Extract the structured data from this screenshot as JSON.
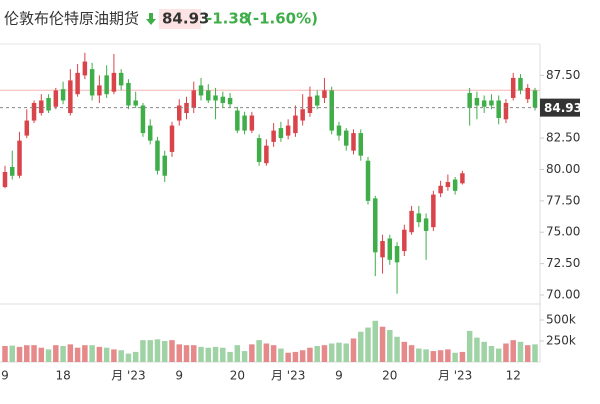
{
  "chart_data": {
    "type": "candlestick",
    "title": "伦敦布伦特原油期货",
    "last_price": 84.93,
    "change": -1.38,
    "change_pct": "(-1.60%)",
    "reference_line": 86.31,
    "up_color": "#d9444a",
    "down_color": "#3fae49",
    "volume_up_color": "#e5898b",
    "volume_down_color": "#9fd3a6",
    "categories": [
      "9",
      null,
      null,
      null,
      null,
      null,
      null,
      null,
      "18",
      null,
      null,
      null,
      null,
      null,
      null,
      null,
      null,
      "月 '23",
      null,
      null,
      null,
      null,
      null,
      null,
      "9",
      null,
      null,
      null,
      null,
      null,
      null,
      null,
      "20",
      null,
      null,
      null,
      null,
      null,
      null,
      "月 '23",
      null,
      null,
      null,
      null,
      null,
      null,
      "9",
      null,
      null,
      null,
      null,
      null,
      null,
      "20",
      null,
      null,
      null,
      null,
      null,
      null,
      null,
      null,
      "月 '23",
      null,
      null,
      null,
      null,
      null,
      null,
      null,
      "12",
      null,
      null,
      null
    ],
    "open": [
      78.6,
      80.2,
      79.5,
      82.7,
      83.9,
      84.5,
      85.7,
      85,
      86.4,
      84.5,
      86,
      87.5,
      88,
      85.9,
      87.5,
      86.2,
      87.7,
      86.9,
      85.5,
      85.1,
      83.5,
      82.3,
      81.1,
      81.4,
      83.9,
      84.5,
      84.9,
      86.7,
      86.3,
      85.9,
      85.8,
      85.7,
      84.7,
      84.3,
      83.1,
      82.5,
      80.5,
      82.2,
      83.3,
      82.7,
      82.9,
      83.9,
      84.5,
      85.9,
      85.7,
      86.3,
      83.5,
      83.1,
      81.5,
      82.9,
      80.7,
      77.7,
      73,
      74.5,
      73.9,
      73.5,
      75,
      76.5,
      76.1,
      75.4,
      78.1,
      78.6,
      79.2,
      78.9,
      86.1,
      85.7,
      85.5,
      85.5,
      85.5,
      84,
      85.7,
      87.3,
      85.6,
      86.3
    ],
    "high": [
      80.3,
      81.5,
      83,
      84.8,
      85.5,
      86,
      86,
      86.5,
      87,
      88,
      88.4,
      89.3,
      88.5,
      87.5,
      88.3,
      89.2,
      88,
      87.2,
      86.2,
      85.3,
      84,
      82.6,
      81.5,
      83.8,
      85.6,
      85.8,
      87,
      87.3,
      86.8,
      86.5,
      86.2,
      86.1,
      85,
      84.6,
      84.6,
      82.8,
      82.4,
      83.7,
      83.8,
      84,
      85.1,
      86,
      86.6,
      86.3,
      87.3,
      86.6,
      83.8,
      83.3,
      83.2,
      83.2,
      81,
      77.9,
      74.8,
      74.8,
      74.2,
      75.6,
      77.1,
      77.1,
      76.5,
      78.3,
      79.1,
      79.6,
      79.4,
      79.9,
      86.5,
      86.2,
      85.9,
      86,
      85.9,
      85.6,
      87.7,
      87.6,
      86.8,
      86.5
    ],
    "low": [
      78.5,
      79.2,
      79.3,
      82.5,
      83.7,
      84.3,
      84.5,
      84.8,
      85.2,
      84.3,
      85.8,
      87.2,
      85.5,
      85.3,
      85.7,
      86,
      86.3,
      84.8,
      84.9,
      82.6,
      82,
      79.6,
      79,
      81,
      83.5,
      84,
      84.5,
      85.5,
      85.3,
      84,
      84.9,
      84.9,
      82.9,
      82.8,
      82.9,
      80.3,
      80.3,
      81.8,
      82.2,
      82.4,
      82.6,
      83.5,
      84.2,
      84.8,
      85.3,
      82.8,
      82.3,
      81.5,
      81.2,
      80.7,
      77.2,
      71.5,
      71.7,
      72.4,
      70.1,
      73.1,
      74.8,
      75.4,
      72.8,
      75.1,
      77.8,
      78.3,
      78,
      78.8,
      83.5,
      84,
      84.5,
      84.8,
      83.6,
      83.7,
      85.5,
      86,
      85.3,
      84.7
    ],
    "close": [
      79.8,
      79.5,
      82.3,
      83.9,
      85.3,
      85.5,
      84.7,
      86.3,
      85.5,
      87.1,
      87.7,
      88.6,
      85.9,
      86.7,
      86,
      87.7,
      86.7,
      85.1,
      85.1,
      82.9,
      82.3,
      79.9,
      79.5,
      83.5,
      85.1,
      85.3,
      86.3,
      85.9,
      85.5,
      85.5,
      85.3,
      85.2,
      83.1,
      83.1,
      84.3,
      80.6,
      81.9,
      83.1,
      82.5,
      83.5,
      84.3,
      84.8,
      85.8,
      85.1,
      86.3,
      83.1,
      82.7,
      81.9,
      82.9,
      81.1,
      77.5,
      73.4,
      74.3,
      72.8,
      72.6,
      75.2,
      76.7,
      75.8,
      75.1,
      78,
      78.7,
      79,
      78.3,
      79.7,
      84.9,
      85.1,
      85,
      85.1,
      84.1,
      85.3,
      87.3,
      86.3,
      86.5,
      84.93
    ],
    "volume": [
      190000,
      195000,
      180000,
      200000,
      200000,
      170000,
      150000,
      200000,
      190000,
      210000,
      170000,
      200000,
      200000,
      180000,
      170000,
      150000,
      140000,
      100000,
      120000,
      260000,
      260000,
      270000,
      250000,
      260000,
      210000,
      200000,
      200000,
      180000,
      170000,
      180000,
      170000,
      120000,
      200000,
      130000,
      210000,
      260000,
      220000,
      200000,
      160000,
      110000,
      120000,
      140000,
      170000,
      190000,
      200000,
      220000,
      230000,
      220000,
      280000,
      360000,
      410000,
      490000,
      420000,
      380000,
      300000,
      240000,
      200000,
      160000,
      150000,
      130000,
      140000,
      150000,
      110000,
      120000,
      370000,
      290000,
      240000,
      190000,
      160000,
      220000,
      260000,
      240000,
      200000,
      210000
    ],
    "ylim": [
      69.28,
      90.0
    ],
    "yticks": [
      {
        "value": 70,
        "label": "70.00"
      },
      {
        "value": 72.5,
        "label": "72.50"
      },
      {
        "value": 75,
        "label": "75.00"
      },
      {
        "value": 77.5,
        "label": "77.50"
      },
      {
        "value": 80,
        "label": "80.00"
      },
      {
        "value": 82.5,
        "label": "82.50"
      },
      {
        "value": 85,
        "label": "85.00"
      },
      {
        "value": 87.5,
        "label": "87.50"
      }
    ],
    "volume_ylim": [
      0,
      690000
    ],
    "volume_yticks": [
      {
        "value": 250000,
        "label": "250k"
      },
      {
        "value": 500000,
        "label": "500k"
      }
    ]
  }
}
